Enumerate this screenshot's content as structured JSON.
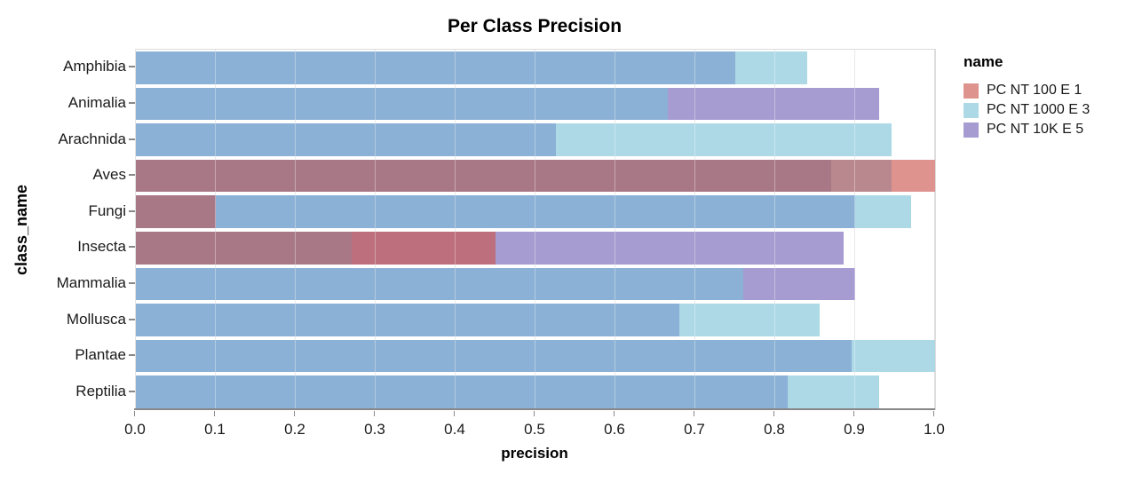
{
  "title": "Per Class Precision",
  "x_axis": {
    "title": "precision",
    "tick_labels": [
      "0.0",
      "0.1",
      "0.2",
      "0.3",
      "0.4",
      "0.5",
      "0.6",
      "0.7",
      "0.8",
      "0.9",
      "1.0"
    ],
    "min": 0,
    "max": 1
  },
  "y_axis": {
    "title": "class_name"
  },
  "legend": {
    "title": "name",
    "items": [
      {
        "label": "PC NT 100 E 1",
        "color": "#de938f"
      },
      {
        "label": "PC NT 1000 E 3",
        "color": "#add9e6"
      },
      {
        "label": "PC NT 10K E 5",
        "color": "#a79cd1"
      }
    ]
  },
  "chart_data": {
    "type": "bar",
    "orientation": "horizontal",
    "title": "Per Class Precision",
    "xlabel": "precision",
    "ylabel": "class_name",
    "xlim": [
      0,
      1
    ],
    "grid": true,
    "legend_position": "right",
    "bar_opacity_note": "three translucent series layered from x=0; overlap regions blend",
    "categories": [
      "Amphibia",
      "Animalia",
      "Arachnida",
      "Aves",
      "Fungi",
      "Insecta",
      "Mammalia",
      "Mollusca",
      "Plantae",
      "Reptilia"
    ],
    "series": [
      {
        "name": "PC NT 100 E 1",
        "key": "r",
        "color": "#de938f",
        "values": [
          null,
          null,
          null,
          1.0,
          0.1,
          0.45,
          null,
          null,
          null,
          null
        ]
      },
      {
        "name": "PC NT 1000 E 3",
        "key": "lb",
        "color": "#add9e6",
        "values": [
          0.84,
          0.665,
          0.945,
          0.945,
          0.97,
          0.27,
          0.76,
          0.855,
          1.0,
          0.93
        ]
      },
      {
        "name": "PC NT 10K E 5",
        "key": "p",
        "color": "#a79cd1",
        "values": [
          0.75,
          0.93,
          0.525,
          0.87,
          0.9,
          0.885,
          0.9,
          0.68,
          0.895,
          0.815
        ]
      }
    ],
    "overlap_colors": {
      "r": "#de938f",
      "lb": "#add9e6",
      "p": "#a79cd1",
      "r+lb": "#b8888e",
      "r+p": "#bd6f7e",
      "lb+p": "#8bb1d6",
      "r+lb+p": "#a97886"
    }
  }
}
